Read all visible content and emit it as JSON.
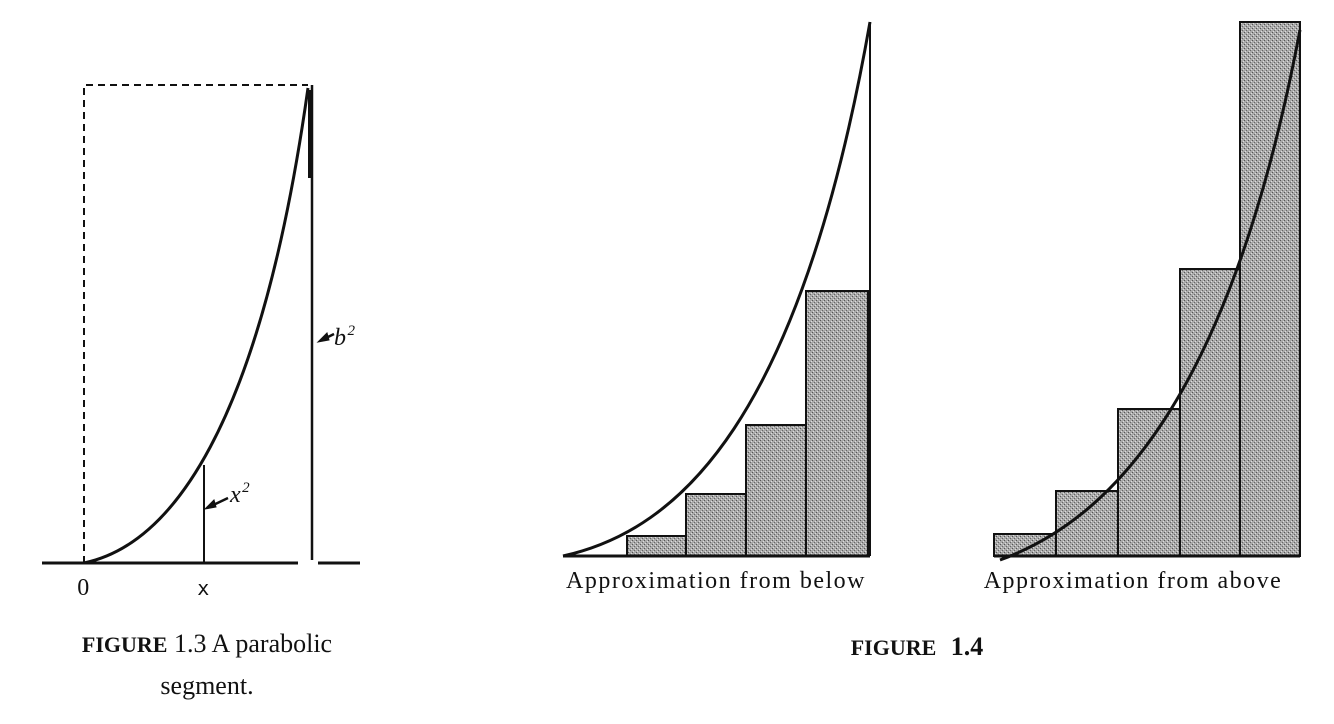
{
  "figure_1_3": {
    "labels": {
      "origin": "0",
      "x": "x",
      "x_squared_base": "x",
      "x_squared_exp": "2",
      "b_squared_base": "b",
      "b_squared_exp": "2"
    },
    "caption": {
      "label": "FIGURE",
      "number": "1.3",
      "line1": "A parabolic",
      "line2": "segment."
    }
  },
  "figure_1_4": {
    "panels": [
      {
        "caption": "Approximation from below"
      },
      {
        "caption": "Approximation from above"
      }
    ],
    "caption": {
      "label": "FIGURE",
      "number": "1.4"
    }
  }
}
